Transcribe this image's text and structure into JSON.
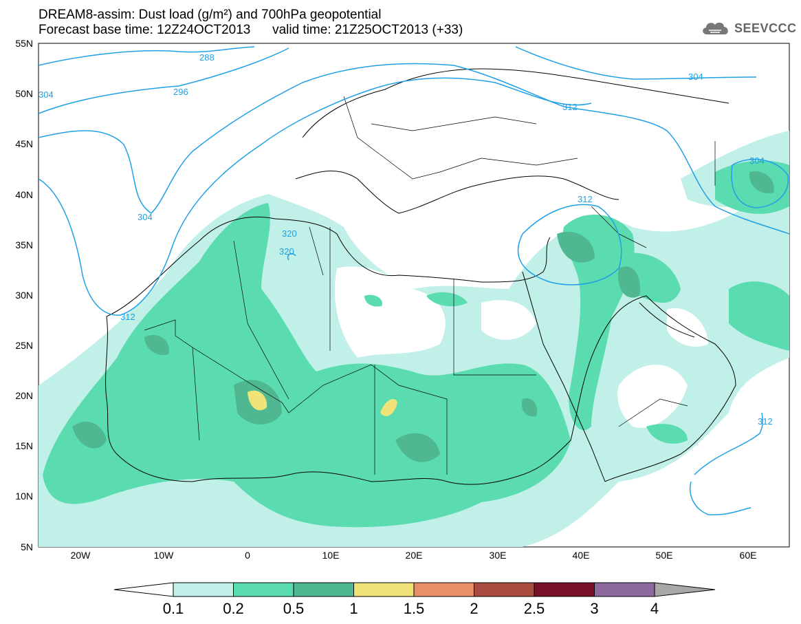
{
  "title": {
    "line1": "DREAM8-assim: Dust load (g/m²) and 700hPa geopotential",
    "base": "Forecast base time: 12Z24OCT2013",
    "valid": "valid time: 21Z25OCT2013 (+33)"
  },
  "logo": {
    "text": "SEEVCCC",
    "icon": "cloud-icon"
  },
  "map": {
    "lat_labels": [
      "55N",
      "50N",
      "45N",
      "40N",
      "35N",
      "30N",
      "25N",
      "20N",
      "15N",
      "10N",
      "5N"
    ],
    "lon_labels": [
      "20W",
      "10W",
      "0",
      "10E",
      "20E",
      "30E",
      "40E",
      "50E",
      "60E"
    ],
    "contour_labels": [
      "288",
      "296",
      "304",
      "304",
      "312",
      "312",
      "312",
      "320",
      "320",
      "304",
      "304",
      "312"
    ]
  },
  "colorbar": {
    "labels": [
      "0.1",
      "0.2",
      "0.5",
      "1",
      "1.5",
      "2",
      "2.5",
      "3",
      "4"
    ],
    "colors": [
      "#c0f0e8",
      "#5adcb0",
      "#50b890",
      "#f0e478",
      "#e89068",
      "#a84c40",
      "#78102c",
      "#8c6aa0"
    ],
    "over_color": "#a8a8a8",
    "under_color": "#ffffff"
  }
}
